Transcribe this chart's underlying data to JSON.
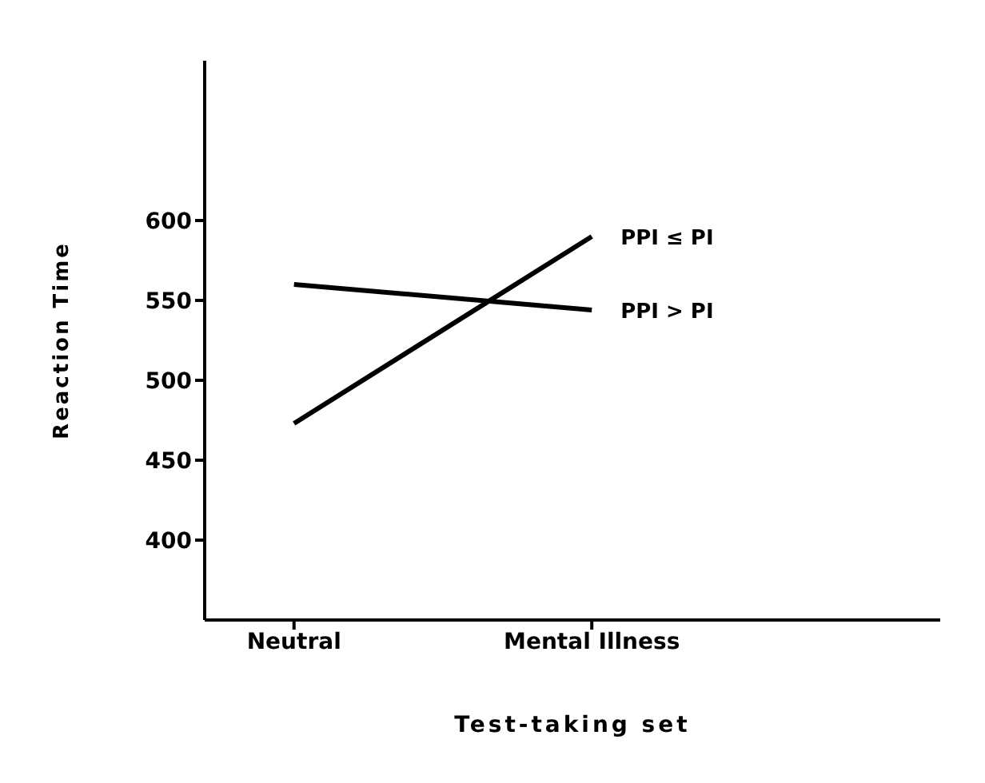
{
  "chart_data": {
    "type": "line",
    "xlabel": "Test-taking set",
    "ylabel": "Reaction Time",
    "categories": [
      "Neutral",
      "Mental Illness"
    ],
    "series": [
      {
        "name": "PPI ≤ PI",
        "color": "#000000",
        "values": [
          473,
          590
        ]
      },
      {
        "name": "PPI > PI",
        "color": "#000000",
        "values": [
          560,
          544
        ]
      }
    ],
    "ylim": [
      350,
      700
    ],
    "yticks": [
      400,
      450,
      500,
      550,
      600
    ],
    "marker": "none",
    "line_style": "solid"
  }
}
